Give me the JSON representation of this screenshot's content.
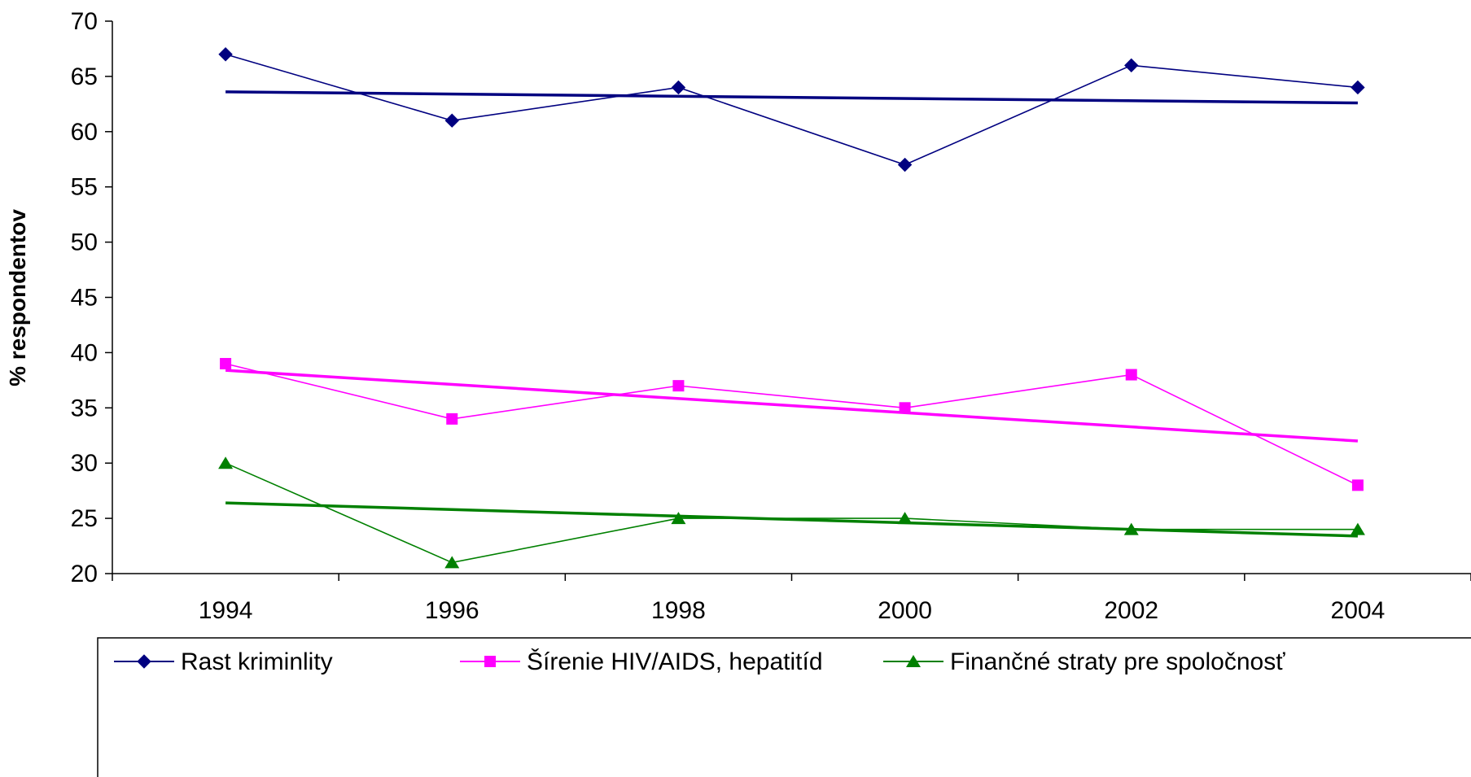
{
  "chart_data": {
    "type": "line",
    "title": "",
    "xlabel": "",
    "ylabel": "% respondentov",
    "categories": [
      "1994",
      "1996",
      "1998",
      "2000",
      "2002",
      "2004"
    ],
    "ylim": [
      20,
      70
    ],
    "yticks": [
      20,
      25,
      30,
      35,
      40,
      45,
      50,
      55,
      60,
      65,
      70
    ],
    "grid": false,
    "legend_position": "bottom",
    "series": [
      {
        "name": "Rast kriminlity",
        "color": "#000080",
        "marker": "diamond",
        "values": [
          67,
          61,
          64,
          57,
          66,
          64
        ],
        "trend": [
          63.6,
          62.6
        ]
      },
      {
        "name": "Šírenie HIV/AIDS, hepatitíd",
        "color": "#FF00FF",
        "marker": "square",
        "values": [
          39,
          34,
          37,
          35,
          38,
          28
        ],
        "trend": [
          38.4,
          32
        ]
      },
      {
        "name": "Finančné straty pre spoločnosť",
        "color": "#008000",
        "marker": "triangle",
        "values": [
          30,
          21,
          25,
          25,
          24,
          24
        ],
        "trend": [
          26.4,
          23.4
        ]
      }
    ]
  }
}
